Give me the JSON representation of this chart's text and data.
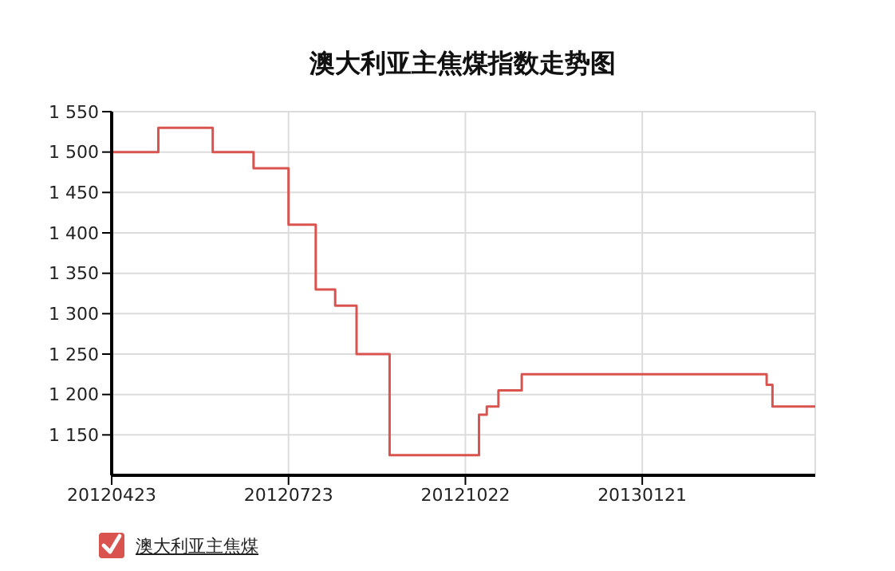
{
  "chart_data": {
    "type": "step",
    "title": "澳大利亚主焦煤指数走势图",
    "x": [
      "2012-04-23",
      "2012-05-17",
      "2012-06-14",
      "2012-07-05",
      "2012-07-23",
      "2012-08-06",
      "2012-08-16",
      "2012-08-27",
      "2012-09-13",
      "2012-10-29",
      "2012-11-02",
      "2012-11-08",
      "2012-11-20",
      "2013-03-23",
      "2013-03-26",
      "2013-03-29",
      "2013-04-20"
    ],
    "series": [
      {
        "name": "澳大利亚主焦煤",
        "color": "#d9534f",
        "values": [
          1500,
          1530,
          1500,
          1480,
          1410,
          1330,
          1310,
          1250,
          1125,
          1175,
          1185,
          1205,
          1225,
          1225,
          1212,
          1185,
          1185
        ]
      }
    ],
    "xlim": [
      "2012-04-23",
      "2013-04-20"
    ],
    "xticks": [
      {
        "value": "2012-04-23",
        "label": "20120423"
      },
      {
        "value": "2012-07-23",
        "label": "20120723"
      },
      {
        "value": "2012-10-22",
        "label": "20121022"
      },
      {
        "value": "2013-01-21",
        "label": "20130121"
      }
    ],
    "ylim": [
      1100,
      1550
    ],
    "yticks": [
      {
        "value": 1150,
        "label": "1 150"
      },
      {
        "value": 1200,
        "label": "1 200"
      },
      {
        "value": 1250,
        "label": "1 250"
      },
      {
        "value": 1300,
        "label": "1 300"
      },
      {
        "value": 1350,
        "label": "1 350"
      },
      {
        "value": 1400,
        "label": "1 400"
      },
      {
        "value": 1450,
        "label": "1 450"
      },
      {
        "value": 1500,
        "label": "1 500"
      },
      {
        "value": 1550,
        "label": "1 550"
      }
    ],
    "grid": true,
    "legend": "bottom left",
    "marker": "none",
    "line_style": "solid"
  }
}
